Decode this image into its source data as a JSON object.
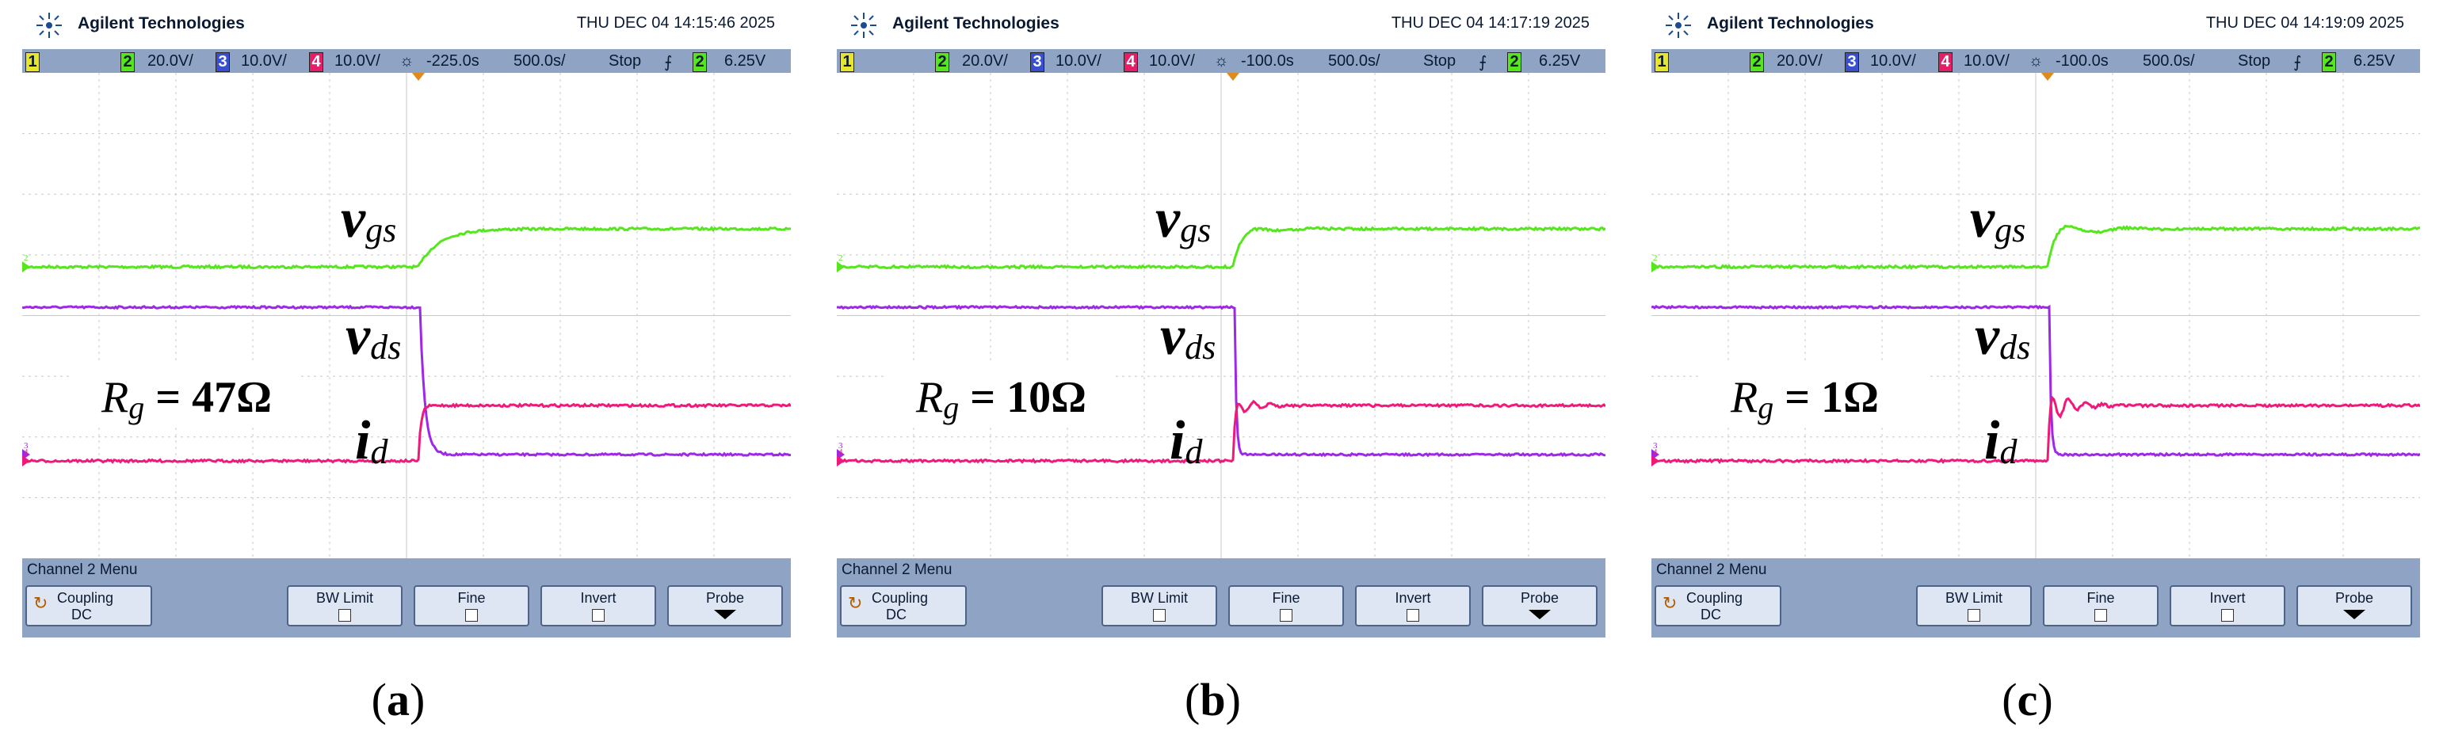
{
  "brand": "Agilent Technologies",
  "panels": [
    {
      "timestamp": "THU DEC 04 14:15:46 2025",
      "ch2_scale": "20.0V/",
      "ch3_scale": "10.0V/",
      "ch4_scale": "10.0V/",
      "time_offset": "-225.0s",
      "time_scale": "500.0s/",
      "run_state": "Stop",
      "trig_level": "6.25V",
      "rg_label": "R",
      "rg_sub": "g",
      "rg_value": " = 47Ω",
      "caption": "a"
    },
    {
      "timestamp": "THU DEC 04 14:17:19 2025",
      "ch2_scale": "20.0V/",
      "ch3_scale": "10.0V/",
      "ch4_scale": "10.0V/",
      "time_offset": "-100.0s",
      "time_scale": "500.0s/",
      "run_state": "Stop",
      "trig_level": "6.25V",
      "rg_label": "R",
      "rg_sub": "g",
      "rg_value": " = 10Ω",
      "caption": "b"
    },
    {
      "timestamp": "THU DEC 04 14:19:09 2025",
      "ch2_scale": "20.0V/",
      "ch3_scale": "10.0V/",
      "ch4_scale": "10.0V/",
      "time_offset": "-100.0s",
      "time_scale": "500.0s/",
      "run_state": "Stop",
      "trig_level": "6.25V",
      "rg_label": "R",
      "rg_sub": "g",
      "rg_value": " = 1Ω",
      "caption": "c"
    }
  ],
  "channels": {
    "ch1": "1",
    "ch2": "2",
    "ch3": "3",
    "ch4": "4",
    "trig_ch": "2"
  },
  "traces": {
    "vgs_main": "v",
    "vgs_sub": "gs",
    "vds_main": "v",
    "vds_sub": "ds",
    "id_main": "i",
    "id_sub": "d"
  },
  "menu": {
    "title": "Channel 2  Menu",
    "coupling": "Coupling",
    "coupling_value": "DC",
    "bw_limit": "BW Limit",
    "fine": "Fine",
    "invert": "Invert",
    "probe": "Probe"
  },
  "colors": {
    "ch2": "#55e61e",
    "ch3": "#9d28e8",
    "ch4": "#f0197a",
    "bar": "#8fa4c4",
    "grid": "#c8c8c8"
  }
}
